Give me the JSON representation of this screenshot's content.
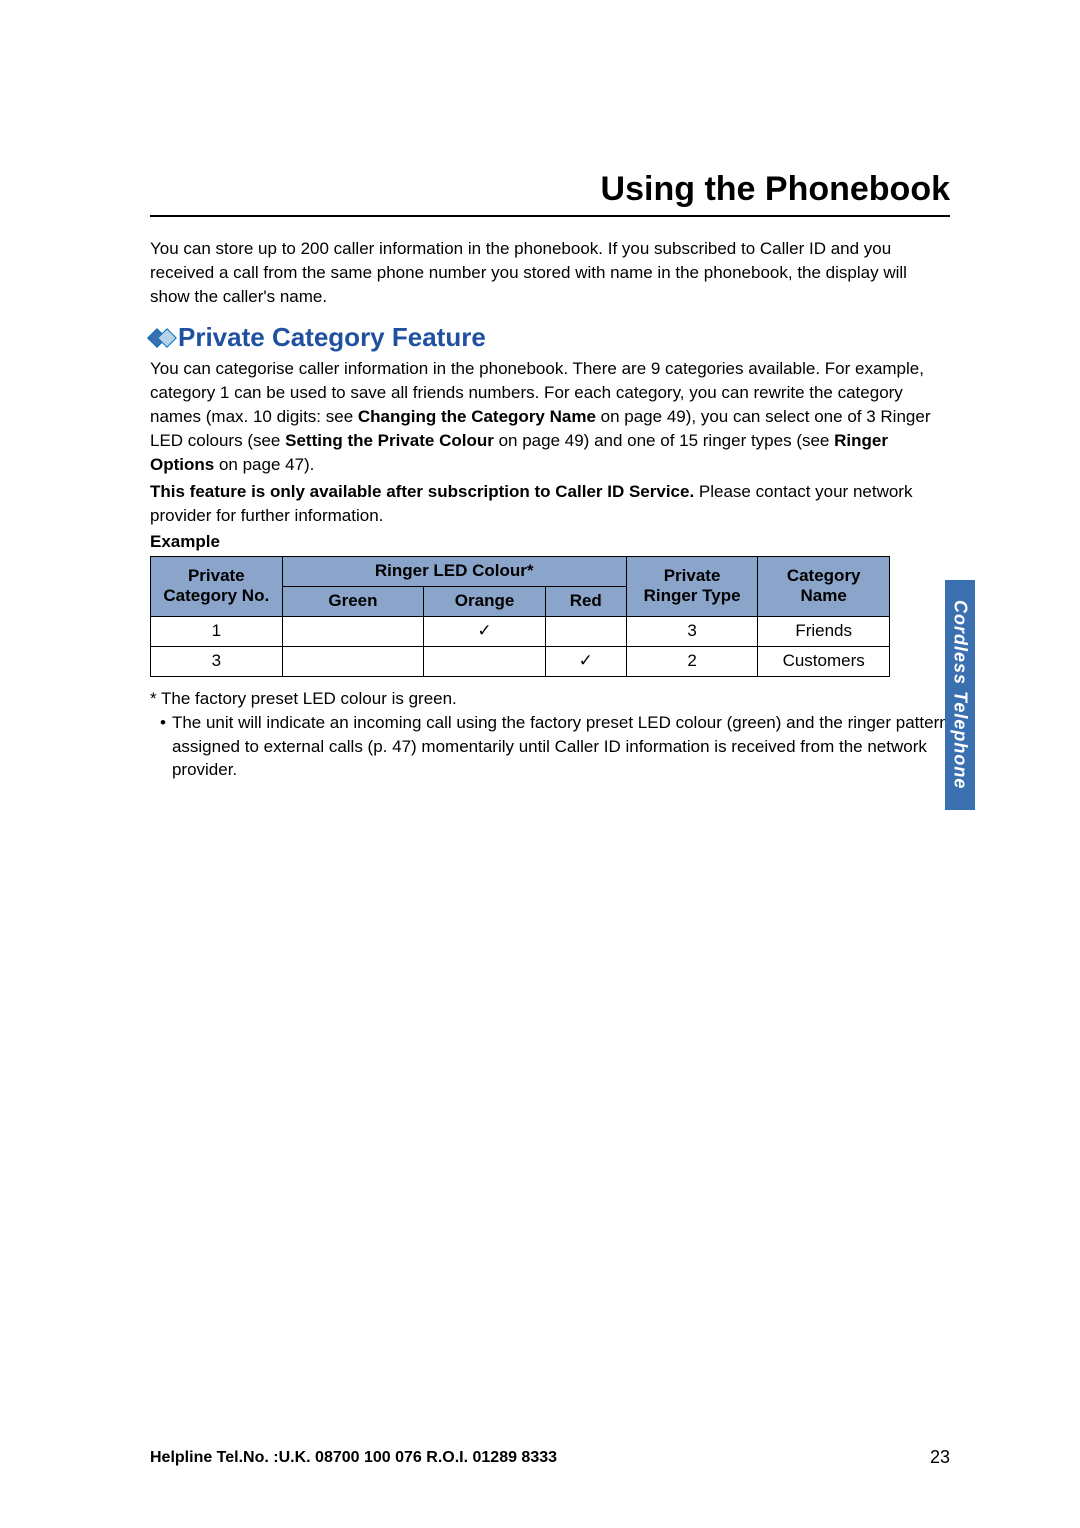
{
  "header": {
    "title": "Using the Phonebook"
  },
  "intro": {
    "text": "You can store up to 200 caller information in the phonebook. If you subscribed to Caller ID and you received a call from the same phone number you stored with name in the phonebook, the display will show the caller's name."
  },
  "subsection": {
    "title": "Private Category Feature",
    "para1_a": "You can categorise caller information in the phonebook. There are 9 categories available. For example, category 1 can be used to save all friends numbers. For each category, you can rewrite the category names (max. 10 digits: see ",
    "para1_bold1": "Changing the Category Name",
    "para1_b": " on page 49), you can select one of 3 Ringer LED colours (see ",
    "para1_bold2": "Setting the Private Colour",
    "para1_c": " on page 49) and one of 15 ringer types (see ",
    "para1_bold3": "Ringer Options",
    "para1_d": " on page 47).",
    "para2_bold": "This feature is only available after subscription to Caller ID Service.",
    "para2_rest": " Please contact your network provider for further information.",
    "example_label": "Example"
  },
  "table": {
    "headers": {
      "private_cat_a": "Private",
      "private_cat_b": "Category No.",
      "ringer_led": "Ringer LED Colour*",
      "green": "Green",
      "orange": "Orange",
      "red": "Red",
      "private_ringer_a": "Private",
      "private_ringer_b": "Ringer Type",
      "cat_name_a": "Category",
      "cat_name_b": "Name"
    },
    "rows": [
      {
        "cat_no": "1",
        "green": "",
        "orange": "✓",
        "red": "",
        "ringer_type": "3",
        "cat_name": "Friends"
      },
      {
        "cat_no": "3",
        "green": "",
        "orange": "",
        "red": "✓",
        "ringer_type": "2",
        "cat_name": "Customers"
      }
    ],
    "header_bg": "#8aa4ca",
    "border_color": "#000000"
  },
  "footnotes": {
    "star": "* The factory preset LED colour is green.",
    "bullet": "The unit will indicate an incoming call using the factory preset LED colour (green) and the ringer pattern assigned to external calls (p. 47) momentarily until Caller ID information is received from the network provider."
  },
  "side_tab": {
    "text": "Cordless Telephone",
    "bg_color": "#3a6fb0",
    "text_color": "#ffffff"
  },
  "footer": {
    "helpline": "Helpline Tel.No. :U.K. 08700 100 076  R.O.I. 01289 8333",
    "page_no": "23"
  },
  "colors": {
    "title_color": "#2050a0",
    "diamond_blue": "#3a6fb0"
  }
}
